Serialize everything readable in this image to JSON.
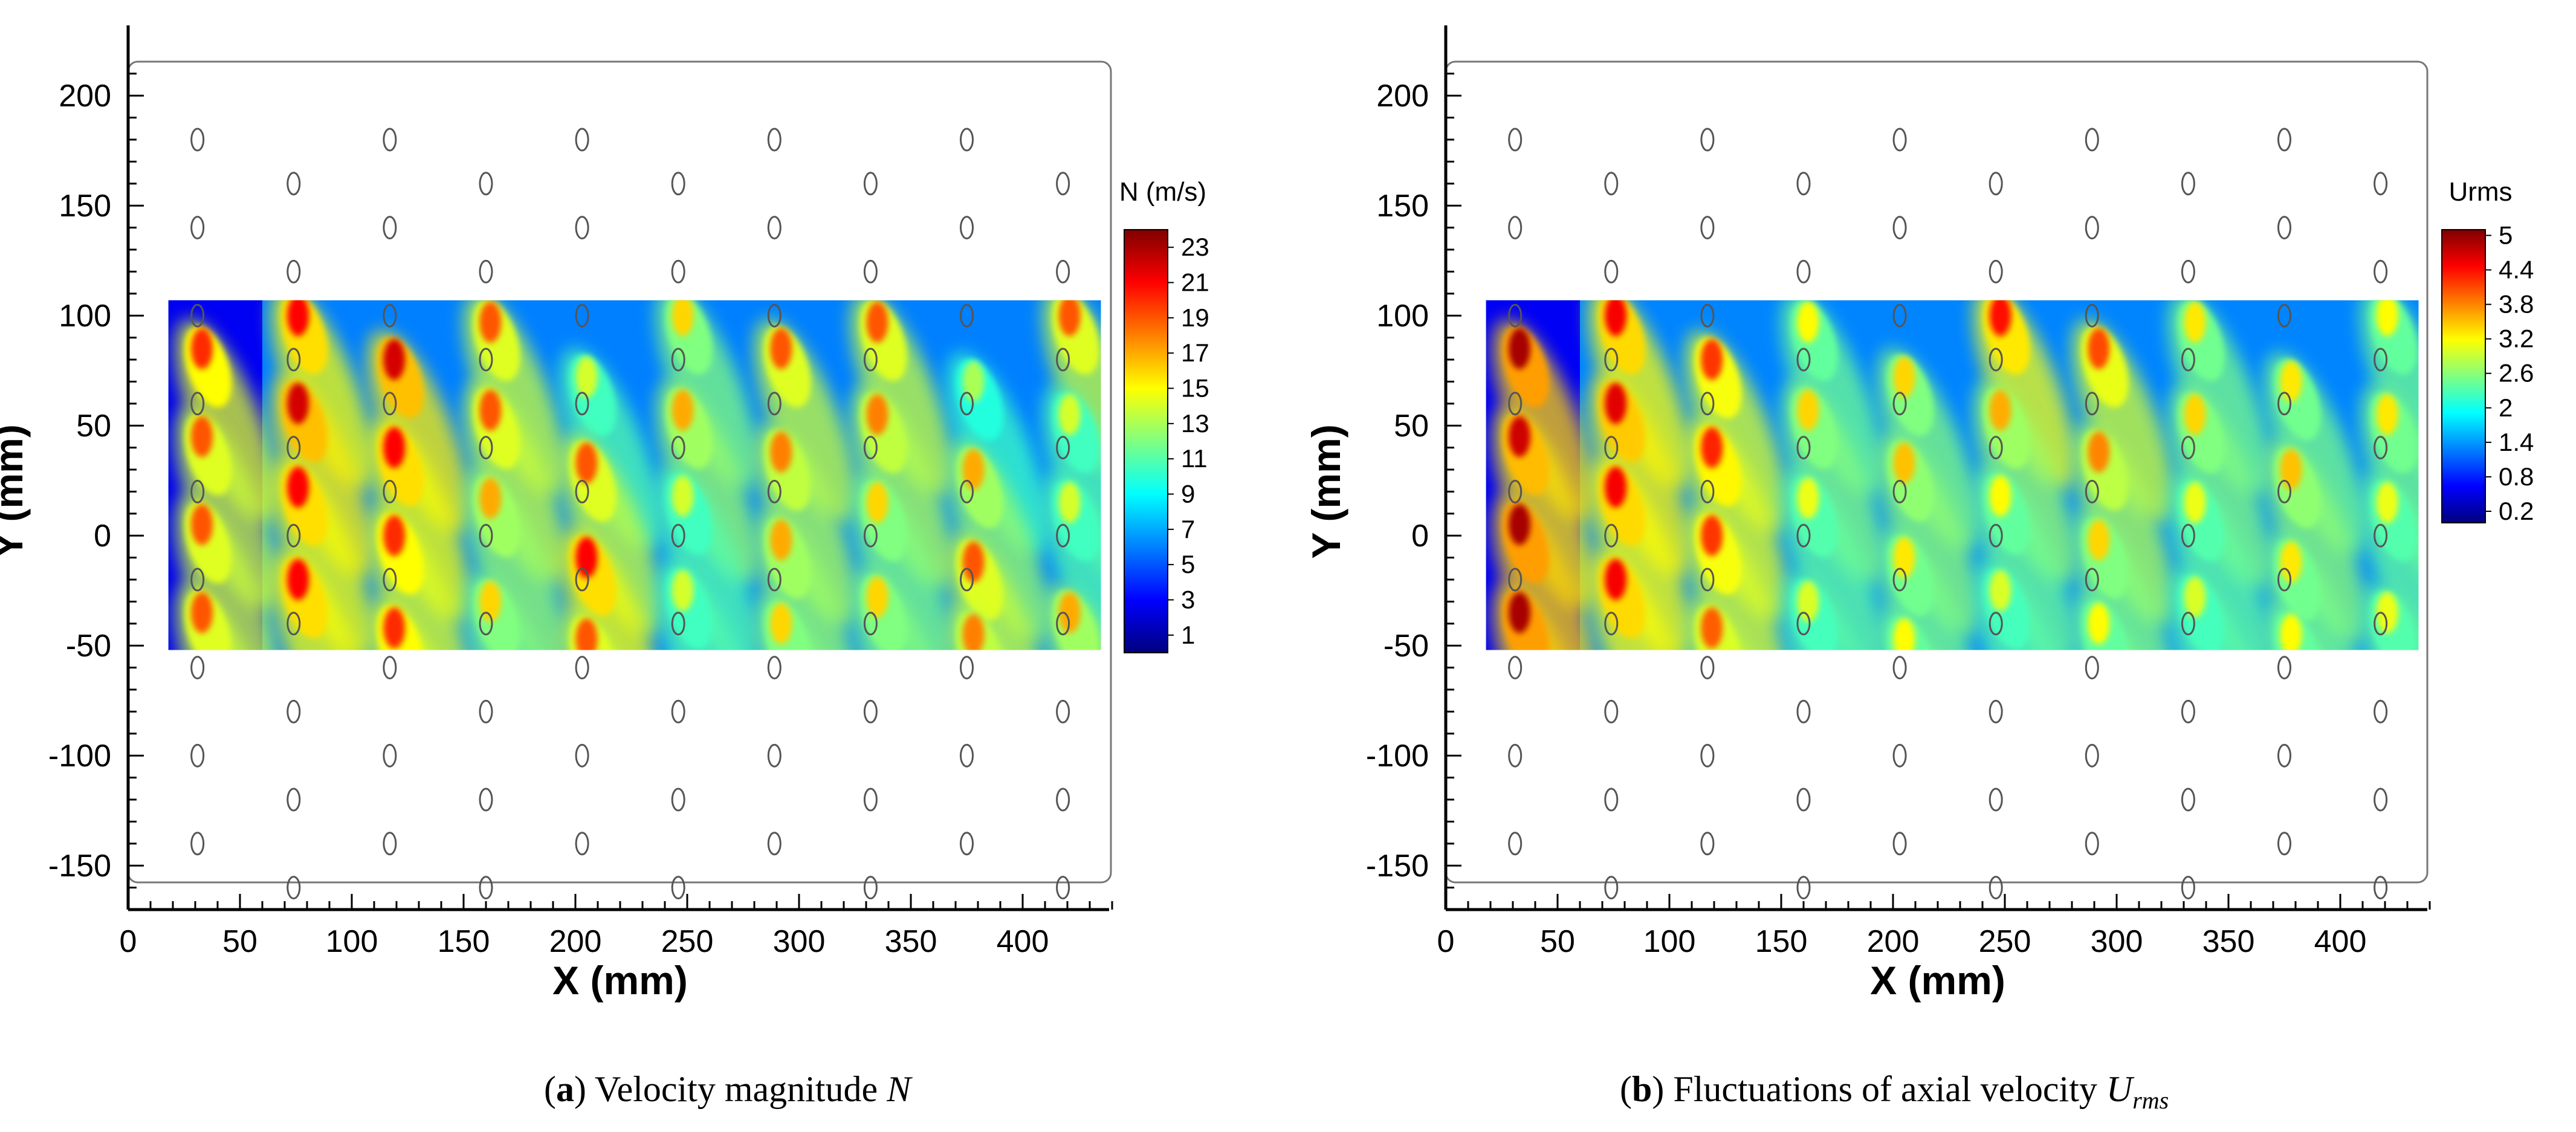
{
  "figure": {
    "colors": {
      "axis": "#000000",
      "frame": "#777777",
      "marker": "#555555"
    },
    "colormap": [
      "#00007f",
      "#0000ff",
      "#0080ff",
      "#00ffff",
      "#80ff80",
      "#ffff00",
      "#ff8000",
      "#ff0000",
      "#7f0000"
    ]
  },
  "chart_data": [
    {
      "id": "a",
      "type": "heatmap",
      "quantity": "Velocity magnitude N",
      "xlabel": "X (mm)",
      "ylabel": "Y (mm)",
      "xlim": [
        0,
        440
      ],
      "ylim": [
        -170,
        215
      ],
      "xticks": [
        0,
        50,
        100,
        150,
        200,
        250,
        300,
        350,
        400
      ],
      "yticks": [
        -150,
        -100,
        -50,
        0,
        50,
        100,
        150,
        200
      ],
      "field_extent": {
        "x": [
          18,
          435
        ],
        "y": [
          -52,
          107
        ]
      },
      "colorbar": {
        "title": "N (m/s)",
        "range": [
          0,
          24
        ],
        "ticks": [
          1,
          3,
          5,
          7,
          9,
          11,
          13,
          15,
          17,
          19,
          21,
          23
        ]
      },
      "hot_spots": [
        {
          "x": 33,
          "y": 85,
          "v": 20
        },
        {
          "x": 33,
          "y": 45,
          "v": 19
        },
        {
          "x": 33,
          "y": 5,
          "v": 19
        },
        {
          "x": 33,
          "y": -35,
          "v": 19
        },
        {
          "x": 76,
          "y": 100,
          "v": 21
        },
        {
          "x": 76,
          "y": 60,
          "v": 22
        },
        {
          "x": 76,
          "y": 22,
          "v": 21
        },
        {
          "x": 76,
          "y": -20,
          "v": 21
        },
        {
          "x": 119,
          "y": 80,
          "v": 22
        },
        {
          "x": 119,
          "y": 40,
          "v": 21
        },
        {
          "x": 119,
          "y": 0,
          "v": 20
        },
        {
          "x": 119,
          "y": -42,
          "v": 20
        },
        {
          "x": 162,
          "y": 97,
          "v": 19
        },
        {
          "x": 162,
          "y": 57,
          "v": 19
        },
        {
          "x": 162,
          "y": 17,
          "v": 17
        },
        {
          "x": 162,
          "y": -30,
          "v": 16
        },
        {
          "x": 205,
          "y": 72,
          "v": 14
        },
        {
          "x": 205,
          "y": 33,
          "v": 19
        },
        {
          "x": 205,
          "y": -10,
          "v": 21
        },
        {
          "x": 205,
          "y": -47,
          "v": 19
        },
        {
          "x": 248,
          "y": 100,
          "v": 16
        },
        {
          "x": 248,
          "y": 57,
          "v": 17
        },
        {
          "x": 248,
          "y": 18,
          "v": 14
        },
        {
          "x": 248,
          "y": -25,
          "v": 14
        },
        {
          "x": 292,
          "y": 85,
          "v": 19
        },
        {
          "x": 292,
          "y": 38,
          "v": 18
        },
        {
          "x": 292,
          "y": -2,
          "v": 17
        },
        {
          "x": 292,
          "y": -40,
          "v": 16
        },
        {
          "x": 335,
          "y": 97,
          "v": 19
        },
        {
          "x": 335,
          "y": 55,
          "v": 18
        },
        {
          "x": 335,
          "y": 15,
          "v": 16
        },
        {
          "x": 335,
          "y": -28,
          "v": 16
        },
        {
          "x": 378,
          "y": 70,
          "v": 13
        },
        {
          "x": 378,
          "y": 30,
          "v": 17
        },
        {
          "x": 378,
          "y": -12,
          "v": 19
        },
        {
          "x": 378,
          "y": -45,
          "v": 18
        },
        {
          "x": 421,
          "y": 100,
          "v": 19
        },
        {
          "x": 421,
          "y": 55,
          "v": 14
        },
        {
          "x": 421,
          "y": 15,
          "v": 14
        },
        {
          "x": 421,
          "y": -35,
          "v": 17
        }
      ],
      "background_value": 6
    },
    {
      "id": "b",
      "type": "heatmap",
      "quantity": "Fluctuations of axial velocity Urms",
      "xlabel": "X (mm)",
      "ylabel": "Y (mm)",
      "xlim": [
        0,
        440
      ],
      "ylim": [
        -170,
        215
      ],
      "xticks": [
        0,
        50,
        100,
        150,
        200,
        250,
        300,
        350,
        400
      ],
      "yticks": [
        -150,
        -100,
        -50,
        0,
        50,
        100,
        150,
        200
      ],
      "field_extent": {
        "x": [
          18,
          435
        ],
        "y": [
          -52,
          107
        ]
      },
      "colorbar": {
        "title": "Urms",
        "range": [
          0,
          5.1
        ],
        "ticks": [
          0.2,
          0.8,
          1.4,
          2,
          2.6,
          3.2,
          3.8,
          4.4,
          5
        ],
        "tick_labels": [
          "0.2",
          "0.8",
          "1.4",
          "2",
          "2.6",
          "3.2",
          "3.8",
          "4.4",
          "5"
        ]
      },
      "hot_spots": [
        {
          "x": 33,
          "y": 85,
          "v": 4.9
        },
        {
          "x": 33,
          "y": 45,
          "v": 4.7
        },
        {
          "x": 33,
          "y": 5,
          "v": 4.9
        },
        {
          "x": 33,
          "y": -35,
          "v": 4.9
        },
        {
          "x": 76,
          "y": 100,
          "v": 4.5
        },
        {
          "x": 76,
          "y": 60,
          "v": 4.6
        },
        {
          "x": 76,
          "y": 22,
          "v": 4.5
        },
        {
          "x": 76,
          "y": -20,
          "v": 4.5
        },
        {
          "x": 119,
          "y": 80,
          "v": 4.2
        },
        {
          "x": 119,
          "y": 40,
          "v": 4.3
        },
        {
          "x": 119,
          "y": 0,
          "v": 4.2
        },
        {
          "x": 119,
          "y": -42,
          "v": 4.0
        },
        {
          "x": 162,
          "y": 97,
          "v": 3.2
        },
        {
          "x": 162,
          "y": 57,
          "v": 3.4
        },
        {
          "x": 162,
          "y": 17,
          "v": 3.1
        },
        {
          "x": 162,
          "y": -30,
          "v": 3.0
        },
        {
          "x": 205,
          "y": 72,
          "v": 3.4
        },
        {
          "x": 205,
          "y": 33,
          "v": 3.5
        },
        {
          "x": 205,
          "y": -10,
          "v": 3.3
        },
        {
          "x": 205,
          "y": -47,
          "v": 3.2
        },
        {
          "x": 248,
          "y": 100,
          "v": 4.4
        },
        {
          "x": 248,
          "y": 57,
          "v": 3.6
        },
        {
          "x": 248,
          "y": 18,
          "v": 3.2
        },
        {
          "x": 248,
          "y": -25,
          "v": 3.0
        },
        {
          "x": 292,
          "y": 85,
          "v": 4.1
        },
        {
          "x": 292,
          "y": 38,
          "v": 3.8
        },
        {
          "x": 292,
          "y": -2,
          "v": 3.4
        },
        {
          "x": 292,
          "y": -40,
          "v": 3.2
        },
        {
          "x": 335,
          "y": 97,
          "v": 3.3
        },
        {
          "x": 335,
          "y": 55,
          "v": 3.4
        },
        {
          "x": 335,
          "y": 15,
          "v": 3.1
        },
        {
          "x": 335,
          "y": -28,
          "v": 3.0
        },
        {
          "x": 378,
          "y": 70,
          "v": 3.3
        },
        {
          "x": 378,
          "y": 30,
          "v": 3.5
        },
        {
          "x": 378,
          "y": -12,
          "v": 3.3
        },
        {
          "x": 378,
          "y": -45,
          "v": 3.2
        },
        {
          "x": 421,
          "y": 100,
          "v": 3.2
        },
        {
          "x": 421,
          "y": 55,
          "v": 3.3
        },
        {
          "x": 421,
          "y": 15,
          "v": 3.1
        },
        {
          "x": 421,
          "y": -35,
          "v": 3.1
        }
      ],
      "background_value": 1.3
    }
  ],
  "markers": {
    "label": "0",
    "columns": [
      {
        "x": 31,
        "ys": [
          180,
          140,
          100,
          60,
          20,
          -20,
          -60,
          -100,
          -140
        ]
      },
      {
        "x": 74,
        "ys": [
          160,
          120,
          80,
          40,
          0,
          -40,
          -80,
          -120,
          -160
        ]
      },
      {
        "x": 117,
        "ys": [
          180,
          140,
          100,
          60,
          20,
          -20,
          -60,
          -100,
          -140
        ]
      },
      {
        "x": 160,
        "ys": [
          160,
          120,
          80,
          40,
          0,
          -40,
          -80,
          -120,
          -160
        ]
      },
      {
        "x": 203,
        "ys": [
          180,
          140,
          100,
          60,
          20,
          -20,
          -60,
          -100,
          -140
        ]
      },
      {
        "x": 246,
        "ys": [
          160,
          120,
          80,
          40,
          0,
          -40,
          -80,
          -120,
          -160
        ]
      },
      {
        "x": 289,
        "ys": [
          180,
          140,
          100,
          60,
          20,
          -20,
          -60,
          -100,
          -140
        ]
      },
      {
        "x": 332,
        "ys": [
          160,
          120,
          80,
          40,
          0,
          -40,
          -80,
          -120,
          -160
        ]
      },
      {
        "x": 375,
        "ys": [
          180,
          140,
          100,
          60,
          20,
          -20,
          -60,
          -100,
          -140
        ]
      },
      {
        "x": 418,
        "ys": [
          160,
          120,
          80,
          40,
          0,
          -40,
          -80,
          -120,
          -160
        ]
      }
    ]
  },
  "captions": {
    "a": {
      "tag": "a",
      "text": " Velocity magnitude ",
      "symbol": "N"
    },
    "b": {
      "tag": "b",
      "text": " Fluctuations of axial velocity ",
      "symbol": "U",
      "sub": "rms"
    }
  }
}
